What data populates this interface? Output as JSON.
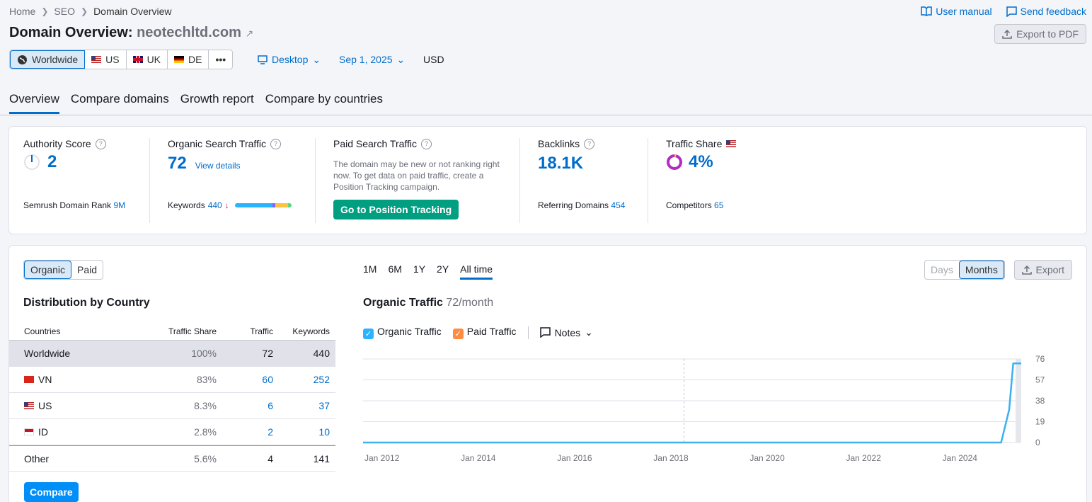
{
  "breadcrumb": [
    "Home",
    "SEO",
    "Domain Overview"
  ],
  "top_links": {
    "user_manual": "User manual",
    "send_feedback": "Send feedback"
  },
  "title": {
    "prefix": "Domain Overview:",
    "domain": "neotechltd.com"
  },
  "export_pdf": "Export to PDF",
  "databases": [
    {
      "label": "Worldwide",
      "icon": "globe-icon"
    },
    {
      "label": "US",
      "icon": "flag-us"
    },
    {
      "label": "UK",
      "icon": "flag-uk"
    },
    {
      "label": "DE",
      "icon": "flag-de"
    },
    {
      "label": "•••",
      "icon": "more-icon"
    }
  ],
  "filters": {
    "device": "Desktop",
    "date": "Sep 1, 2025",
    "currency": "USD"
  },
  "tabs": [
    "Overview",
    "Compare domains",
    "Growth report",
    "Compare by countries"
  ],
  "summary": {
    "authority": {
      "label": "Authority Score",
      "value": "2",
      "sub_label": "Semrush Domain Rank",
      "sub_value": "9M"
    },
    "organic": {
      "label": "Organic Search Traffic",
      "value": "72",
      "link": "View details",
      "sub_label": "Keywords",
      "sub_value": "440",
      "trend": "↓"
    },
    "paid": {
      "label": "Paid Search Traffic",
      "note": "The domain may be new or not ranking right now. To get data on paid traffic, create a Position Tracking campaign.",
      "button": "Go to Position Tracking"
    },
    "backlinks": {
      "label": "Backlinks",
      "value": "18.1K",
      "sub_label": "Referring Domains",
      "sub_value": "454"
    },
    "traffic_share": {
      "label": "Traffic Share",
      "value": "4%",
      "sub_label": "Competitors",
      "sub_value": "65"
    }
  },
  "toggle": {
    "organic": "Organic",
    "paid": "Paid"
  },
  "distribution": {
    "title": "Distribution by Country",
    "headers": {
      "countries": "Countries",
      "share": "Traffic Share",
      "traffic": "Traffic",
      "keywords": "Keywords"
    },
    "rows": [
      {
        "country": "Worldwide",
        "flag": "",
        "share": "100%",
        "share_value": 1.0,
        "traffic": "72",
        "keywords": "440"
      },
      {
        "country": "VN",
        "flag": "flag-vn",
        "share": "83%",
        "share_value": 0.83,
        "traffic": "60",
        "keywords": "252"
      },
      {
        "country": "US",
        "flag": "flag-us",
        "share": "8.3%",
        "share_value": 0.083,
        "traffic": "6",
        "keywords": "37"
      },
      {
        "country": "ID",
        "flag": "flag-id",
        "share": "2.8%",
        "share_value": 0.028,
        "traffic": "2",
        "keywords": "10"
      },
      {
        "country": "Other",
        "flag": "",
        "share": "5.6%",
        "share_value": 0.056,
        "traffic": "4",
        "keywords": "141"
      }
    ],
    "compare_button": "Compare"
  },
  "periods": [
    "1M",
    "6M",
    "1Y",
    "2Y",
    "All time"
  ],
  "granularity": {
    "days": "Days",
    "months": "Months"
  },
  "export": "Export",
  "chart_title": {
    "label": "Organic Traffic",
    "value": "72/month"
  },
  "chart_legend": {
    "organic": "Organic Traffic",
    "paid": "Paid Traffic",
    "notes": "Notes"
  },
  "colors": {
    "accent": "#006dca",
    "organic": "#2bb3ff",
    "paid": "#ff8c43",
    "green": "#009f81"
  },
  "chart_data": {
    "type": "line",
    "title": "Organic Traffic",
    "x_ticks": [
      "Jan 2012",
      "Jan 2014",
      "Jan 2016",
      "Jan 2018",
      "Jan 2020",
      "Jan 2022",
      "Jan 2024"
    ],
    "y_ticks": [
      0,
      19,
      38,
      57,
      76
    ],
    "ylim": [
      0,
      76
    ],
    "xlim": [
      "2012-01",
      "2025-09"
    ],
    "series": [
      {
        "name": "Organic Traffic",
        "points": [
          [
            "2012-01",
            0
          ],
          [
            "2025-04",
            0
          ],
          [
            "2025-06",
            30
          ],
          [
            "2025-07",
            72
          ],
          [
            "2025-09",
            72
          ]
        ]
      }
    ]
  }
}
